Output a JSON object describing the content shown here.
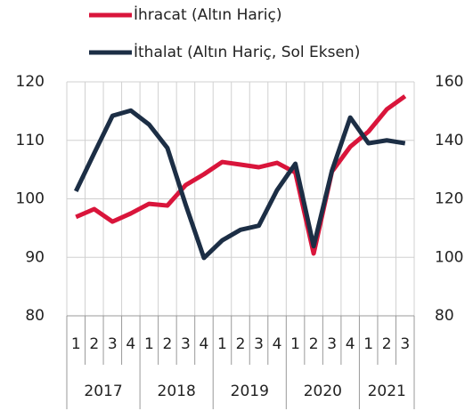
{
  "chart_data": {
    "type": "line",
    "categories": [
      "1",
      "2",
      "3",
      "4",
      "1",
      "2",
      "3",
      "4",
      "1",
      "2",
      "3",
      "4",
      "1",
      "2",
      "3",
      "4",
      "1",
      "2",
      "3"
    ],
    "years": [
      "2017",
      "2018",
      "2019",
      "2020",
      "2021"
    ],
    "series": [
      {
        "name": "İhracat (Altın Hariç)",
        "color": "#d9153b",
        "axis": "y2",
        "values": [
          113.8,
          116.5,
          112.2,
          115.0,
          118.3,
          117.7,
          124.7,
          128.4,
          132.6,
          131.7,
          130.8,
          132.3,
          129.0,
          101.3,
          129.3,
          137.8,
          143.0,
          150.6,
          155.1
        ]
      },
      {
        "name": "İthalat (Altın Hariç, Sol Eksen)",
        "color": "#1c2e45",
        "axis": "y",
        "values": [
          101.3,
          107.8,
          114.2,
          115.1,
          112.7,
          108.7,
          99.0,
          89.9,
          92.9,
          94.7,
          95.4,
          101.5,
          106.0,
          91.9,
          104.8,
          113.9,
          109.5,
          110.0,
          109.5
        ]
      }
    ],
    "ylim": [
      80,
      120
    ],
    "yticks": [
      80,
      90,
      100,
      110,
      120
    ],
    "y2lim": [
      80,
      160
    ],
    "y2ticks": [
      80,
      100,
      120,
      140,
      160
    ],
    "grid": true
  }
}
